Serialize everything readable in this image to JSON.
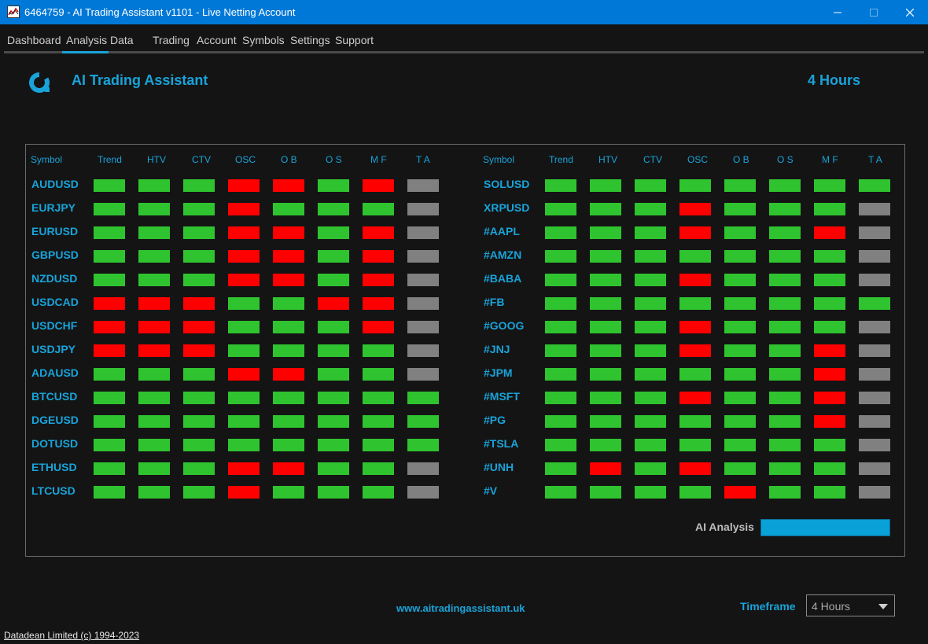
{
  "window": {
    "title": "6464759 - AI Trading Assistant v1101 - Live Netting Account",
    "icons": {
      "app": "chart-app-icon",
      "minimize": "minimize-icon",
      "maximize": "maximize-icon",
      "close": "close-icon"
    }
  },
  "menu": {
    "items": [
      "Dashboard",
      "Analysis",
      "Data",
      "Trading",
      "Account",
      "Symbols",
      "Settings",
      "Support"
    ],
    "active": "Analysis"
  },
  "header": {
    "app_name": "AI Trading Assistant",
    "timeframe_title": "4 Hours",
    "logo_icon": "brand-logo-icon"
  },
  "table": {
    "columns": [
      "Symbol",
      "Trend",
      "HTV",
      "CTV",
      "OSC",
      "O B",
      "O S",
      "M F",
      "T A"
    ],
    "status_colors": {
      "G": "#2fc32f",
      "R": "#ff0000",
      "N": "#808080"
    },
    "left": [
      {
        "symbol": "AUDUSD",
        "cells": "GGGRRGRN"
      },
      {
        "symbol": "EURJPY",
        "cells": "GGGRGGGN"
      },
      {
        "symbol": "EURUSD",
        "cells": "GGGRRGRN"
      },
      {
        "symbol": "GBPUSD",
        "cells": "GGGRRGRN"
      },
      {
        "symbol": "NZDUSD",
        "cells": "GGGRRGRN"
      },
      {
        "symbol": "USDCAD",
        "cells": "RRRGGRRN"
      },
      {
        "symbol": "USDCHF",
        "cells": "RRRGGGRN"
      },
      {
        "symbol": "USDJPY",
        "cells": "RRRGGGGN"
      },
      {
        "symbol": "ADAUSD",
        "cells": "GGGRRGGN"
      },
      {
        "symbol": "BTCUSD",
        "cells": "GGGGGGGG"
      },
      {
        "symbol": "DGEUSD",
        "cells": "GGGGGGGG"
      },
      {
        "symbol": "DOTUSD",
        "cells": "GGGGGGGG"
      },
      {
        "symbol": "ETHUSD",
        "cells": "GGGRRGGN"
      },
      {
        "symbol": "LTCUSD",
        "cells": "GGGRGGGN"
      }
    ],
    "right": [
      {
        "symbol": "SOLUSD",
        "cells": "GGGGGGGG"
      },
      {
        "symbol": "XRPUSD",
        "cells": "GGGRGGGN"
      },
      {
        "symbol": "#AAPL",
        "cells": "GGGRGGRN"
      },
      {
        "symbol": "#AMZN",
        "cells": "GGGGGGGN"
      },
      {
        "symbol": "#BABA",
        "cells": "GGGRGGGN"
      },
      {
        "symbol": "#FB",
        "cells": "GGGGGGGG"
      },
      {
        "symbol": "#GOOG",
        "cells": "GGGRGGGN"
      },
      {
        "symbol": "#JNJ",
        "cells": "GGGRGGRN"
      },
      {
        "symbol": "#JPM",
        "cells": "GGGGGGRN"
      },
      {
        "symbol": "#MSFT",
        "cells": "GGGRGGRN"
      },
      {
        "symbol": "#PG",
        "cells": "GGGGGGRN"
      },
      {
        "symbol": "#TSLA",
        "cells": "GGGGGGGN"
      },
      {
        "symbol": "#UNH",
        "cells": "GRGRGGGN"
      },
      {
        "symbol": "#V",
        "cells": "GGGGRGGN"
      }
    ]
  },
  "ai_analysis": {
    "label": "AI Analysis",
    "progress": 1.0,
    "color": "#0aa0d8"
  },
  "footer": {
    "website": "www.aitradingassistant.uk",
    "timeframe_label": "Timeframe",
    "timeframe_value": "4 Hours",
    "dropdown_icon": "chevron-down-icon",
    "copyright": "Datadean Limited (c) 1994-2023"
  }
}
